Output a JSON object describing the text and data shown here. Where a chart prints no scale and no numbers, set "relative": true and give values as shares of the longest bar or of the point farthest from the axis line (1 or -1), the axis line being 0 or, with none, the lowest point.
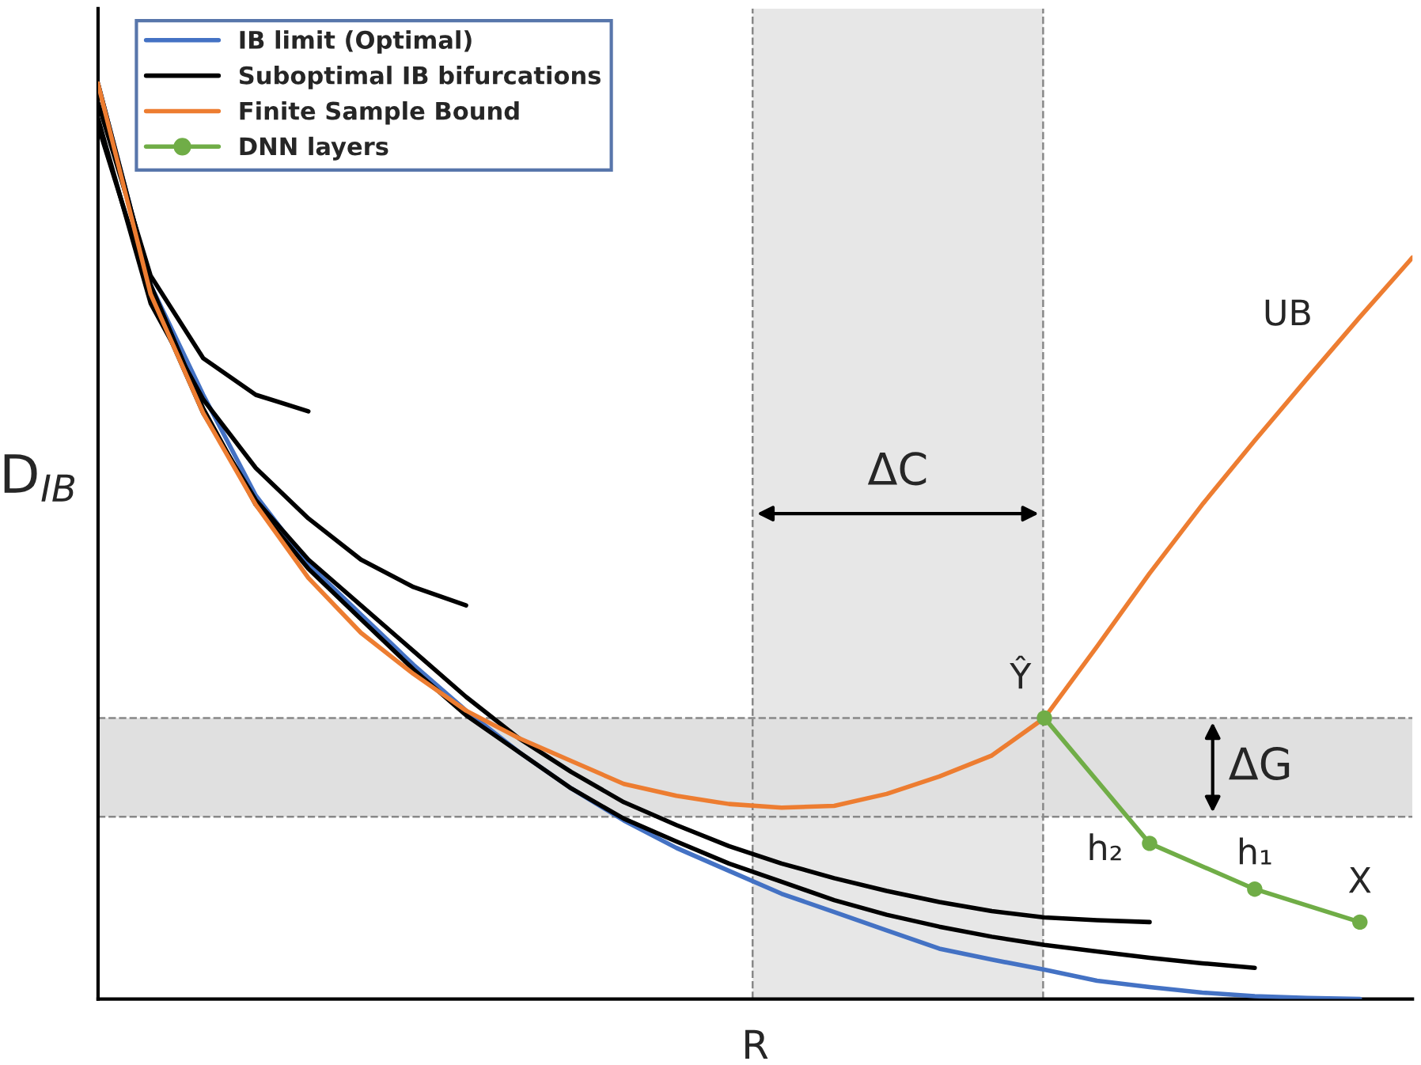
{
  "chart_data": {
    "type": "line",
    "relative": true,
    "xlabel": "R",
    "ylabel": "D$_{IB}$",
    "legend": "top left",
    "grid": false,
    "categories": [
      null,
      null,
      null,
      null,
      null,
      null,
      null,
      null,
      null,
      null,
      null,
      null,
      null,
      null,
      null,
      null,
      null,
      null,
      null,
      null,
      null,
      null,
      null,
      null,
      null,
      null
    ],
    "series": [
      {
        "name": "IB limit (Optimal)",
        "color": "#4472c4",
        "marker": "none",
        "values": [
          1.0,
          0.78,
          0.66,
          0.55,
          0.475,
          0.42,
          0.365,
          0.315,
          0.27,
          0.23,
          0.195,
          0.165,
          0.14,
          0.115,
          0.095,
          0.075,
          0.055,
          0.043,
          0.032,
          0.02,
          0.013,
          0.007,
          0.003,
          0.001,
          0,
          null
        ]
      },
      {
        "name": "Suboptimal IB bifurcations",
        "color": "#000000",
        "marker": "none",
        "values": [
          0.979,
          0.79,
          0.7,
          0.66,
          0.642,
          null,
          null,
          null,
          null,
          null,
          null,
          null,
          null,
          null,
          null,
          null,
          null,
          null,
          null,
          null,
          null,
          null,
          null,
          null,
          null,
          null
        ]
      },
      {
        "color": "#000000",
        "marker": "none",
        "values": [
          0.962,
          0.76,
          0.655,
          0.58,
          0.525,
          0.48,
          0.45,
          0.43,
          null,
          null,
          null,
          null,
          null,
          null,
          null,
          null,
          null,
          null,
          null,
          null,
          null,
          null,
          null,
          null,
          null,
          null
        ]
      },
      {
        "color": "#000000",
        "marker": "none",
        "values": [
          0.954,
          0.77,
          0.64,
          0.545,
          0.48,
          0.43,
          0.38,
          0.33,
          0.285,
          0.248,
          0.215,
          0.19,
          0.167,
          0.148,
          0.132,
          0.118,
          0.106,
          0.096,
          0.089,
          0.086,
          0.084,
          null,
          null,
          null,
          null,
          null
        ]
      },
      {
        "color": "#000000",
        "marker": "none",
        "values": [
          1.0,
          0.78,
          0.645,
          0.54,
          0.47,
          0.415,
          0.36,
          0.31,
          0.27,
          0.23,
          0.197,
          0.172,
          0.148,
          0.128,
          0.108,
          0.092,
          0.079,
          0.068,
          0.059,
          0.052,
          0.045,
          0.039,
          0.034,
          null,
          null,
          null
        ]
      },
      {
        "name": "Finite Sample Bound",
        "color": "#ed7d31",
        "marker": "none",
        "values": [
          1.0,
          0.77,
          0.64,
          0.54,
          0.46,
          0.4,
          0.355,
          0.315,
          0.285,
          0.26,
          0.235,
          0.222,
          0.213,
          0.209,
          0.211,
          0.224,
          0.243,
          0.266,
          0.307,
          0.385,
          0.465,
          0.54,
          0.61,
          0.678,
          0.745,
          0.81
        ]
      },
      {
        "name": "DNN layers",
        "color": "#70ad47",
        "marker": "circle",
        "values": [
          null,
          null,
          null,
          null,
          null,
          null,
          null,
          null,
          null,
          null,
          null,
          null,
          null,
          null,
          null,
          null,
          null,
          null,
          0.307,
          null,
          0.17,
          null,
          0.12,
          null,
          0.084,
          null
        ]
      }
    ],
    "bands": [
      {
        "axis": "y",
        "from": 0.199,
        "to": 0.307,
        "label": "ΔG",
        "color": "#e0e0e0"
      }
    ],
    "annotations": [
      "ΔC",
      {
        "text": "Ŷ",
        "y": 0.307
      },
      "h₂",
      {
        "text": "h₁",
        "y": 0.12
      },
      {
        "text": "X",
        "y": 0.084
      },
      "UB"
    ]
  }
}
